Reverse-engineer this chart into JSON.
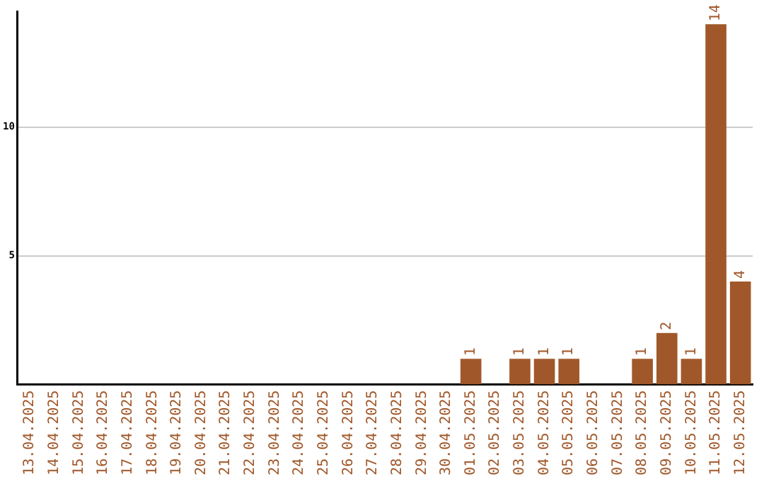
{
  "chart_data": {
    "type": "bar",
    "categories": [
      "13.04.2025",
      "14.04.2025",
      "15.04.2025",
      "16.04.2025",
      "17.04.2025",
      "18.04.2025",
      "19.04.2025",
      "20.04.2025",
      "21.04.2025",
      "22.04.2025",
      "23.04.2025",
      "24.04.2025",
      "25.04.2025",
      "26.04.2025",
      "27.04.2025",
      "28.04.2025",
      "29.04.2025",
      "30.04.2025",
      "01.05.2025",
      "02.05.2025",
      "03.05.2025",
      "04.05.2025",
      "05.05.2025",
      "06.05.2025",
      "07.05.2025",
      "08.05.2025",
      "09.05.2025",
      "10.05.2025",
      "11.05.2025",
      "12.05.2025"
    ],
    "values": [
      0,
      0,
      0,
      0,
      0,
      0,
      0,
      0,
      0,
      0,
      0,
      0,
      0,
      0,
      0,
      0,
      0,
      0,
      1,
      0,
      1,
      1,
      1,
      0,
      0,
      1,
      2,
      1,
      14,
      4
    ],
    "value_labels": [
      null,
      null,
      null,
      null,
      null,
      null,
      null,
      null,
      null,
      null,
      null,
      null,
      null,
      null,
      null,
      null,
      null,
      null,
      "1",
      null,
      "1",
      "1",
      "1",
      null,
      null,
      "1",
      "2",
      "1",
      "14",
      "4"
    ],
    "color": "#a0582a",
    "ylim": [
      0,
      14.5
    ],
    "yticks": [
      5,
      10
    ],
    "grid": "y",
    "legend": false
  }
}
